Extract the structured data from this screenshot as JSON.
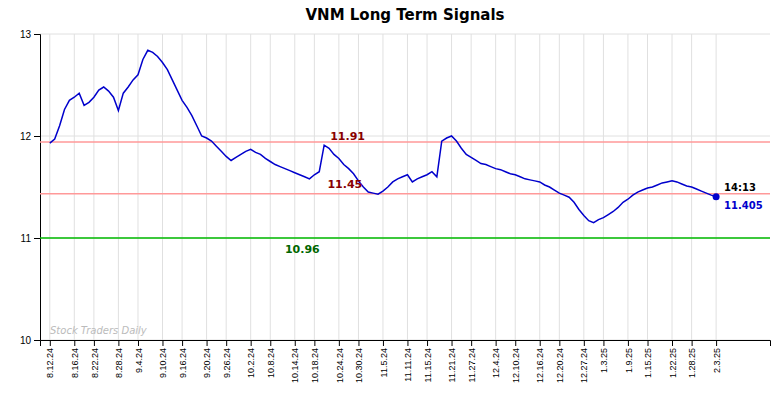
{
  "chart_data": {
    "type": "line",
    "title": "VNM Long Term Signals",
    "color": "#0000cc",
    "grid": true,
    "ylim": [
      10,
      13
    ],
    "yticks": [
      10,
      11,
      12,
      13
    ],
    "categories": [
      "8.12.24",
      null,
      null,
      null,
      null,
      "8.16.24",
      null,
      null,
      null,
      "8.22.24",
      null,
      null,
      null,
      null,
      "8.28.24",
      null,
      null,
      null,
      "9.4.24",
      null,
      null,
      null,
      null,
      "9.10.24",
      null,
      null,
      null,
      "9.16.24",
      null,
      null,
      null,
      null,
      "9.20.24",
      null,
      null,
      null,
      "9.26.24",
      null,
      null,
      null,
      null,
      "10.2.24",
      null,
      null,
      null,
      "10.8.24",
      null,
      null,
      null,
      null,
      "10.14.24",
      null,
      null,
      null,
      "10.18.24",
      null,
      null,
      null,
      null,
      "10.24.24",
      null,
      null,
      null,
      "10.30.24",
      null,
      null,
      null,
      null,
      "11.5.24",
      null,
      null,
      null,
      null,
      "11.11.24",
      null,
      null,
      null,
      "11.15.24",
      null,
      null,
      null,
      null,
      "11.21.24",
      null,
      null,
      null,
      "11.27.24",
      null,
      null,
      null,
      null,
      "12.4.24",
      null,
      null,
      null,
      "12.10.24",
      null,
      null,
      null,
      null,
      "12.16.24",
      null,
      null,
      null,
      "12.20.24",
      null,
      null,
      null,
      null,
      "12.27.24",
      null,
      null,
      null,
      "1.3.25",
      null,
      null,
      null,
      null,
      "1.9.25",
      null,
      null,
      null,
      "1.15.25",
      null,
      null,
      null,
      null,
      "1.22.25",
      null,
      null,
      null,
      "1.28.25",
      null,
      null,
      null,
      null,
      "2.3.25"
    ],
    "values": [
      11.93,
      11.97,
      12.1,
      12.26,
      12.35,
      12.38,
      12.42,
      12.3,
      12.33,
      12.38,
      12.45,
      12.48,
      12.44,
      12.38,
      12.25,
      12.42,
      12.48,
      12.55,
      12.6,
      12.75,
      12.84,
      12.82,
      12.78,
      12.72,
      12.65,
      12.55,
      12.45,
      12.35,
      12.28,
      12.2,
      12.1,
      12.0,
      11.98,
      11.95,
      11.9,
      11.85,
      11.8,
      11.76,
      11.79,
      11.82,
      11.85,
      11.87,
      11.84,
      11.82,
      11.78,
      11.75,
      11.72,
      11.7,
      11.68,
      11.66,
      11.64,
      11.62,
      11.6,
      11.58,
      11.62,
      11.65,
      11.91,
      11.88,
      11.82,
      11.78,
      11.72,
      11.68,
      11.63,
      11.56,
      11.5,
      11.45,
      11.44,
      11.43,
      11.46,
      11.5,
      11.55,
      11.58,
      11.6,
      11.62,
      11.55,
      11.58,
      11.6,
      11.62,
      11.65,
      11.6,
      11.95,
      11.98,
      12.0,
      11.95,
      11.88,
      11.82,
      11.79,
      11.76,
      11.73,
      11.72,
      11.7,
      11.68,
      11.67,
      11.65,
      11.63,
      11.62,
      11.6,
      11.58,
      11.57,
      11.56,
      11.55,
      11.52,
      11.5,
      11.47,
      11.44,
      11.42,
      11.4,
      11.35,
      11.28,
      11.22,
      11.17,
      11.15,
      11.18,
      11.2,
      11.23,
      11.26,
      11.3,
      11.35,
      11.38,
      11.42,
      11.45,
      11.47,
      11.49,
      11.5,
      11.52,
      11.54,
      11.55,
      11.56,
      11.55,
      11.53,
      11.51,
      11.5,
      11.48,
      11.46,
      11.44,
      11.42,
      11.405
    ],
    "reference_lines": [
      {
        "value": 11.94,
        "color": "#ff9999"
      },
      {
        "value": 11.435,
        "color": "#ff9999"
      },
      {
        "value": 11.0,
        "color": "#00bb00"
      }
    ],
    "annotations": [
      {
        "text": "11.91",
        "x": 56,
        "y": 11.91,
        "color": "#880000"
      },
      {
        "text": "11.45",
        "x": 65,
        "y": 11.45,
        "color": "#880000"
      },
      {
        "text": "10.96",
        "x": 48,
        "y": 10.975,
        "color": "#006600"
      }
    ],
    "last_point": {
      "value": 11.405,
      "time": "14:13",
      "color": "#0000cc"
    },
    "watermark": "Stock Traders Daily"
  }
}
